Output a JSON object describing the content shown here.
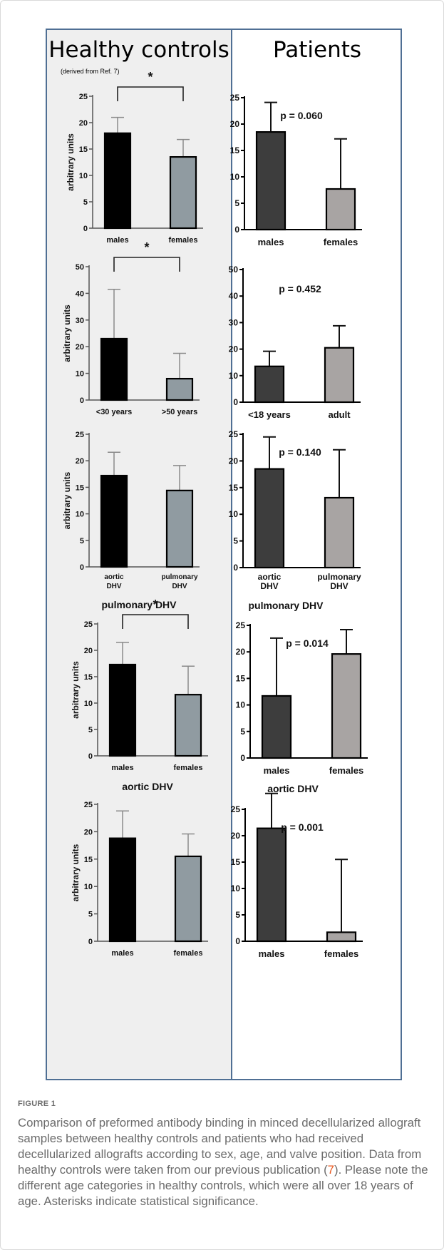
{
  "figure": {
    "left_heading": "Healthy controls",
    "left_note": "(derived from Ref. 7)",
    "right_heading": "Patients",
    "label": "FIGURE 1",
    "caption_before": "Comparison of preformed antibody binding in minced decellularized allograft samples between healthy controls and patients who had received decellularized allografts according to sex, age, and valve position. Data from healthy controls were taken from our previous publication (",
    "caption_ref": "7",
    "caption_after": "). Please note the different age categories in healthy controls, which were all over 18 years of age. Asterisks indicate statistical significance."
  },
  "colors": {
    "frame": "#4f6f94",
    "panel_left": "#efefef",
    "control_dark": "#000000",
    "control_light": "#909ba1",
    "patient_dark": "#3d3d3d",
    "patient_light": "#a8a4a3",
    "link": "#e8571e"
  },
  "chart_data": [
    {
      "type": "bar",
      "group": "Healthy controls",
      "ylabel": "arbitrary units",
      "ylim": [
        0,
        25
      ],
      "yticks": [
        0,
        5,
        10,
        15,
        20,
        25
      ],
      "categories": [
        "males",
        "females"
      ],
      "values": [
        18,
        13.5
      ],
      "errors": [
        3,
        3.3
      ],
      "significance": "*",
      "caption": ""
    },
    {
      "type": "bar",
      "group": "Patients",
      "ylabel": "",
      "ylim": [
        0,
        25
      ],
      "yticks": [
        0,
        5,
        10,
        15,
        20,
        25
      ],
      "categories": [
        "males",
        "females"
      ],
      "values": [
        18.5,
        7.7
      ],
      "errors": [
        5.6,
        9.5
      ],
      "annotation": "p = 0.060",
      "caption": ""
    },
    {
      "type": "bar",
      "group": "Healthy controls",
      "ylabel": "arbitrary units",
      "ylim": [
        0,
        50
      ],
      "yticks": [
        0,
        10,
        20,
        30,
        40,
        50
      ],
      "categories": [
        "<30 years",
        ">50 years"
      ],
      "values": [
        23,
        8
      ],
      "errors": [
        18.5,
        9.5
      ],
      "significance": "*",
      "caption": ""
    },
    {
      "type": "bar",
      "group": "Patients",
      "ylabel": "",
      "ylim": [
        0,
        50
      ],
      "yticks": [
        0,
        10,
        20,
        30,
        40,
        50
      ],
      "categories": [
        "<18 years",
        "adult"
      ],
      "values": [
        13.5,
        20.5
      ],
      "errors": [
        5.7,
        8.3
      ],
      "annotation": "p = 0.452",
      "caption": ""
    },
    {
      "type": "bar",
      "group": "Healthy controls",
      "ylabel": "arbitrary units",
      "ylim": [
        0,
        25
      ],
      "yticks": [
        0,
        5,
        10,
        15,
        20,
        25
      ],
      "categories": [
        "aortic DHV",
        "pulmonary DHV"
      ],
      "values": [
        17.2,
        14.4
      ],
      "errors": [
        4.4,
        4.7
      ],
      "caption": "pulmonary DHV"
    },
    {
      "type": "bar",
      "group": "Patients",
      "ylabel": "",
      "ylim": [
        0,
        25
      ],
      "yticks": [
        0,
        5,
        10,
        15,
        20,
        25
      ],
      "categories": [
        "aortic DHV",
        "pulmonary DHV"
      ],
      "values": [
        18.5,
        13.1
      ],
      "errors": [
        6,
        9
      ],
      "annotation": "p = 0.140",
      "caption": "pulmonary DHV"
    },
    {
      "type": "bar",
      "group": "Healthy controls",
      "ylabel": "arbitrary units",
      "ylim": [
        0,
        25
      ],
      "yticks": [
        0,
        5,
        10,
        15,
        20,
        25
      ],
      "categories": [
        "males",
        "females"
      ],
      "values": [
        17.3,
        11.6
      ],
      "errors": [
        4.2,
        5.4
      ],
      "significance": "*",
      "caption": "aortic DHV"
    },
    {
      "type": "bar",
      "group": "Patients",
      "ylabel": "",
      "ylim": [
        0,
        25
      ],
      "yticks": [
        0,
        5,
        10,
        15,
        20,
        25
      ],
      "categories": [
        "males",
        "females"
      ],
      "values": [
        11.7,
        19.6
      ],
      "errors": [
        10.9,
        4.6
      ],
      "annotation": "p = 0.014",
      "caption": "aortic DHV"
    },
    {
      "type": "bar",
      "group": "Healthy controls",
      "ylabel": "arbitrary units",
      "ylim": [
        0,
        25
      ],
      "yticks": [
        0,
        5,
        10,
        15,
        20,
        25
      ],
      "categories": [
        "males",
        "females"
      ],
      "values": [
        18.8,
        15.5
      ],
      "errors": [
        5,
        4.1
      ],
      "caption": ""
    },
    {
      "type": "bar",
      "group": "Patients",
      "ylabel": "",
      "ylim": [
        0,
        25
      ],
      "yticks": [
        0,
        5,
        10,
        15,
        20,
        25
      ],
      "categories": [
        "males",
        "females"
      ],
      "values": [
        21.4,
        1.7
      ],
      "errors": [
        6.6,
        13.8
      ],
      "annotation": "p = 0.001",
      "caption": ""
    }
  ]
}
